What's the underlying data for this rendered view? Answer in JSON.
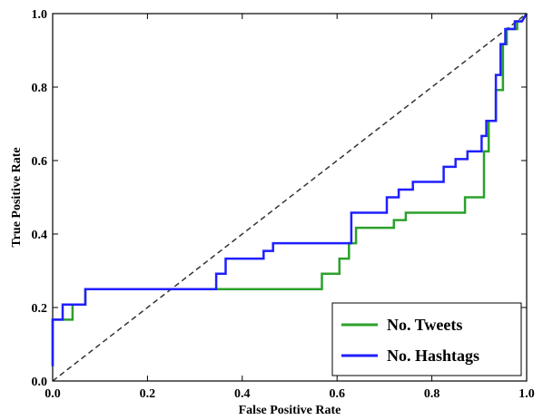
{
  "chart_data": {
    "type": "line",
    "xlabel": "False Positive Rate",
    "ylabel": "True Positive Rate",
    "xlim": [
      0.0,
      1.0
    ],
    "ylim": [
      0.0,
      1.0
    ],
    "xticks": [
      "0.0",
      "0.2",
      "0.4",
      "0.6",
      "0.8",
      "1.0"
    ],
    "yticks": [
      "0.0",
      "0.2",
      "0.4",
      "0.6",
      "0.8",
      "1.0"
    ],
    "grid": false,
    "legend_position": "lower-right",
    "diagonal": {
      "style": "dashed",
      "color": "#333333",
      "points": [
        [
          0,
          0
        ],
        [
          1,
          1
        ]
      ]
    },
    "series": [
      {
        "name": "No. Tweets",
        "color": "#2ca02c",
        "points": [
          [
            0.0,
            0.04
          ],
          [
            0.0,
            0.167
          ],
          [
            0.042,
            0.167
          ],
          [
            0.042,
            0.208
          ],
          [
            0.069,
            0.208
          ],
          [
            0.069,
            0.25
          ],
          [
            0.568,
            0.25
          ],
          [
            0.568,
            0.292
          ],
          [
            0.605,
            0.292
          ],
          [
            0.605,
            0.333
          ],
          [
            0.625,
            0.333
          ],
          [
            0.625,
            0.375
          ],
          [
            0.64,
            0.375
          ],
          [
            0.64,
            0.417
          ],
          [
            0.69,
            0.417
          ],
          [
            0.69,
            0.417
          ],
          [
            0.72,
            0.417
          ],
          [
            0.72,
            0.438
          ],
          [
            0.745,
            0.438
          ],
          [
            0.745,
            0.458
          ],
          [
            0.87,
            0.458
          ],
          [
            0.87,
            0.5
          ],
          [
            0.91,
            0.5
          ],
          [
            0.91,
            0.625
          ],
          [
            0.92,
            0.625
          ],
          [
            0.92,
            0.708
          ],
          [
            0.935,
            0.708
          ],
          [
            0.935,
            0.792
          ],
          [
            0.95,
            0.792
          ],
          [
            0.95,
            0.917
          ],
          [
            0.958,
            0.917
          ],
          [
            0.958,
            0.958
          ],
          [
            0.98,
            0.958
          ],
          [
            0.98,
            0.979
          ],
          [
            0.99,
            0.979
          ],
          [
            1.0,
            1.0
          ]
        ]
      },
      {
        "name": "No. Hashtags",
        "color": "#1f1fff",
        "points": [
          [
            0.0,
            0.04
          ],
          [
            0.0,
            0.167
          ],
          [
            0.021,
            0.167
          ],
          [
            0.021,
            0.208
          ],
          [
            0.069,
            0.208
          ],
          [
            0.069,
            0.25
          ],
          [
            0.345,
            0.25
          ],
          [
            0.345,
            0.292
          ],
          [
            0.365,
            0.292
          ],
          [
            0.365,
            0.333
          ],
          [
            0.445,
            0.333
          ],
          [
            0.445,
            0.354
          ],
          [
            0.465,
            0.354
          ],
          [
            0.465,
            0.375
          ],
          [
            0.63,
            0.375
          ],
          [
            0.63,
            0.417
          ],
          [
            0.63,
            0.458
          ],
          [
            0.705,
            0.458
          ],
          [
            0.705,
            0.5
          ],
          [
            0.73,
            0.5
          ],
          [
            0.73,
            0.521
          ],
          [
            0.76,
            0.521
          ],
          [
            0.76,
            0.542
          ],
          [
            0.825,
            0.542
          ],
          [
            0.825,
            0.583
          ],
          [
            0.85,
            0.583
          ],
          [
            0.85,
            0.604
          ],
          [
            0.875,
            0.604
          ],
          [
            0.875,
            0.625
          ],
          [
            0.905,
            0.625
          ],
          [
            0.905,
            0.667
          ],
          [
            0.915,
            0.667
          ],
          [
            0.915,
            0.708
          ],
          [
            0.935,
            0.708
          ],
          [
            0.935,
            0.833
          ],
          [
            0.945,
            0.833
          ],
          [
            0.945,
            0.917
          ],
          [
            0.955,
            0.917
          ],
          [
            0.955,
            0.958
          ],
          [
            0.975,
            0.958
          ],
          [
            0.975,
            0.979
          ],
          [
            0.99,
            0.979
          ],
          [
            1.0,
            1.0
          ]
        ]
      }
    ]
  }
}
